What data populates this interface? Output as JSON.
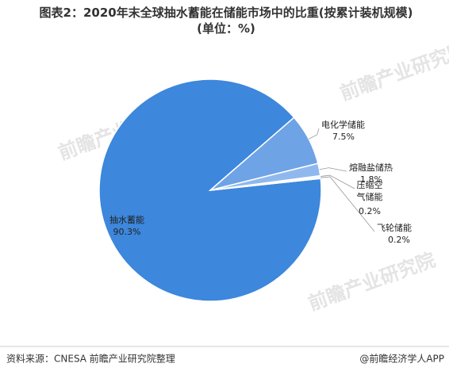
{
  "chart_data": {
    "type": "pie",
    "title": "图表2：2020年末全球抽水蓄能在储能市场中的比重(按累计装机规模)(单位：%)",
    "categories": [
      "抽水蓄能",
      "电化学储能",
      "熔融盐储热",
      "压缩空气储能",
      "飞轮储能"
    ],
    "values": [
      90.3,
      7.5,
      1.8,
      0.2,
      0.2
    ],
    "value_labels": [
      "90.3%",
      "7.5%",
      "1.8%",
      "0.2%",
      "0.2%"
    ],
    "colors": [
      "#3d87dc",
      "#6ea3e6",
      "#8fb9ee",
      "#b4d0f4",
      "#cfe0f8"
    ],
    "source": "资料来源：CNESA 前瞻产业研究院整理",
    "footer": "@前瞻经济学人APP",
    "watermark": "前瞻产业研究院"
  }
}
